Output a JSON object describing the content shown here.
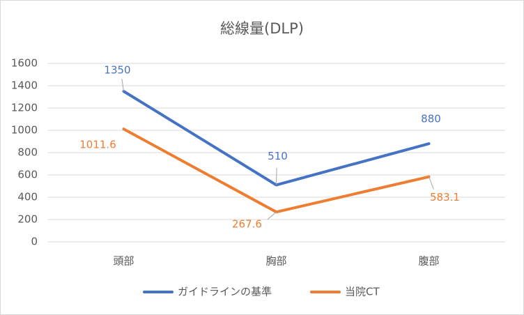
{
  "chart_data": {
    "type": "line",
    "title": "総線量(DLP)",
    "categories": [
      "頭部",
      "胸部",
      "腹部"
    ],
    "series": [
      {
        "name": "ガイドラインの基準",
        "color": "#4472c4",
        "values": [
          1350,
          510,
          880
        ]
      },
      {
        "name": "当院CT",
        "color": "#ed7d31",
        "values": [
          1011.6,
          267.6,
          583.1
        ]
      }
    ],
    "ylim": [
      0,
      1600
    ],
    "yticks": [
      0,
      200,
      400,
      600,
      800,
      1000,
      1200,
      1400,
      1600
    ],
    "grid": true,
    "legend": "bottom"
  }
}
